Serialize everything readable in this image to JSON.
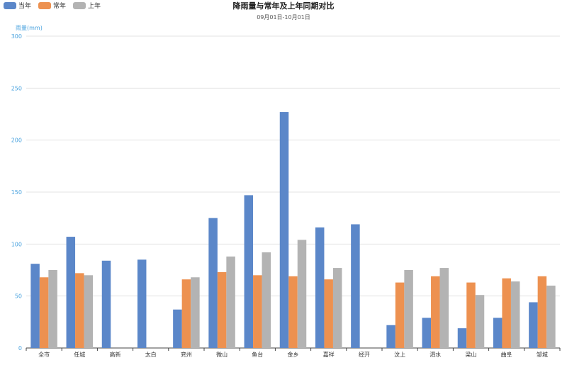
{
  "chart_data": {
    "type": "bar",
    "title": "降雨量与常年及上年同期对比",
    "subtitle": "09月01日-10月01日",
    "xlabel": "",
    "ylabel": "雨量(mm)",
    "ylim": [
      0,
      300
    ],
    "yticks": [
      0,
      50,
      100,
      150,
      200,
      250,
      300
    ],
    "grid": true,
    "legend_position": "top-left",
    "categories": [
      "全市",
      "任城",
      "高新",
      "太白",
      "兖州",
      "微山",
      "鱼台",
      "金乡",
      "嘉祥",
      "经开",
      "汶上",
      "泗水",
      "梁山",
      "曲阜",
      "邹城"
    ],
    "series": [
      {
        "name": "当年",
        "color": "#5b87c9",
        "values": [
          81,
          107,
          84,
          85,
          37,
          125,
          147,
          227,
          116,
          119,
          22,
          29,
          19,
          29,
          44
        ]
      },
      {
        "name": "常年",
        "color": "#ed9150",
        "values": [
          68,
          72,
          null,
          null,
          66,
          73,
          70,
          69,
          66,
          null,
          63,
          69,
          63,
          67,
          69
        ]
      },
      {
        "name": "上年",
        "color": "#b3b3b3",
        "values": [
          75,
          70,
          null,
          null,
          68,
          88,
          92,
          104,
          77,
          null,
          75,
          77,
          51,
          64,
          60
        ]
      }
    ]
  }
}
